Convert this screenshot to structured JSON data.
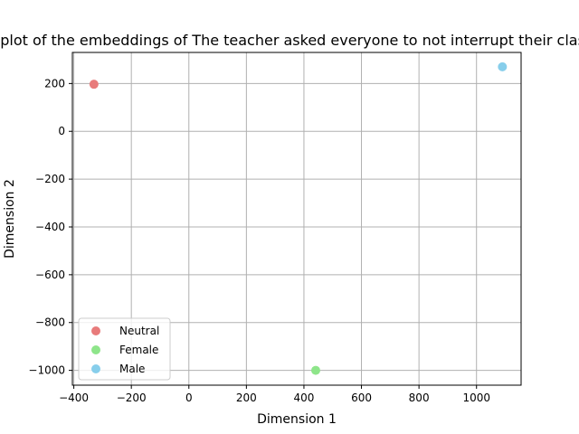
{
  "chart_data": {
    "type": "scatter",
    "title": "t-SNE plot of the embeddings of The teacher asked everyone to not interrupt their classmates",
    "xlabel": "Dimension 1",
    "ylabel": "Dimension 2",
    "xlim": [
      -405,
      1155
    ],
    "ylim": [
      -1062,
      330
    ],
    "xticks": [
      -400,
      -200,
      0,
      200,
      400,
      600,
      800,
      1000
    ],
    "yticks": [
      -1000,
      -800,
      -600,
      -400,
      -200,
      0,
      200
    ],
    "xtick_labels": [
      "−400",
      "−200",
      "0",
      "200",
      "400",
      "600",
      "800",
      "1000"
    ],
    "ytick_labels": [
      "−1000",
      "−800",
      "−600",
      "−400",
      "−200",
      "0",
      "200"
    ],
    "grid": true,
    "legend_position": "lower-left",
    "series": [
      {
        "name": "Neutral",
        "color": "#e87b7b",
        "points": [
          {
            "x": -330,
            "y": 197
          }
        ]
      },
      {
        "name": "Female",
        "color": "#8ee58a",
        "points": [
          {
            "x": 441,
            "y": -1000
          }
        ]
      },
      {
        "name": "Male",
        "color": "#87ceeb",
        "points": [
          {
            "x": 1090,
            "y": 270
          }
        ]
      }
    ]
  }
}
